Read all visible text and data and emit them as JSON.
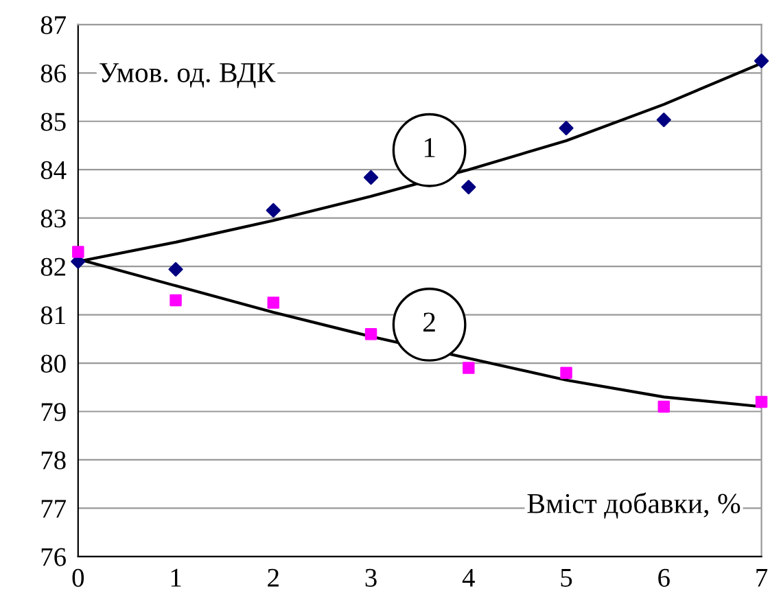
{
  "chart_data": {
    "type": "scatter",
    "xlabel": "Вміст добавки, %",
    "ylabel": "Умов. од. ВДК",
    "x": [
      0,
      1,
      2,
      3,
      4,
      5,
      6,
      7
    ],
    "series": [
      {
        "color": "#000080",
        "marker": "diamond",
        "values": [
          82.1,
          81.94,
          83.16,
          83.84,
          83.64,
          84.86,
          85.03,
          86.25
        ]
      },
      {
        "color": "#ff00ff",
        "marker": "square",
        "values": [
          82.3,
          81.3,
          81.25,
          80.6,
          79.9,
          79.8,
          79.1,
          79.2
        ]
      },
      {
        "type": "line",
        "color": "#000000",
        "marker": "none",
        "line_style": "solid",
        "values": [
          82.1,
          82.5,
          82.95,
          83.45,
          84.0,
          84.6,
          85.35,
          86.2
        ]
      },
      {
        "type": "line",
        "color": "#000000",
        "marker": "none",
        "line_style": "solid",
        "values": [
          82.15,
          81.6,
          81.05,
          80.55,
          80.1,
          79.65,
          79.3,
          79.1
        ]
      }
    ],
    "annotations": [
      "1",
      "2"
    ],
    "xlim": [
      0,
      7
    ],
    "xticks": [
      0,
      1,
      2,
      3,
      4,
      5,
      6,
      7
    ],
    "ylim": [
      76,
      87
    ],
    "yticks": [
      76,
      77,
      78,
      79,
      80,
      81,
      82,
      83,
      84,
      85,
      86,
      87
    ],
    "grid": "y",
    "legend": false
  }
}
